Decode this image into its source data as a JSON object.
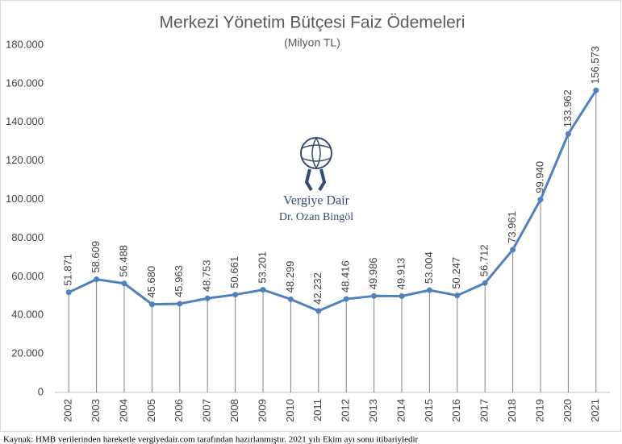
{
  "chart_data": {
    "type": "line",
    "title": "Merkezi Yönetim Bütçesi Faiz Ödemeleri",
    "subtitle": "(Milyon TL)",
    "categories": [
      "2002",
      "2003",
      "2004",
      "2005",
      "2006",
      "2007",
      "2008",
      "2009",
      "2010",
      "2011",
      "2012",
      "2013",
      "2014",
      "2015",
      "2016",
      "2017",
      "2018",
      "2019",
      "2020",
      "2021"
    ],
    "values": [
      51871,
      58609,
      56488,
      45680,
      45963,
      48753,
      50661,
      53201,
      48299,
      42232,
      48416,
      49986,
      49913,
      53004,
      50247,
      56712,
      73961,
      99940,
      133962,
      156573
    ],
    "value_labels": [
      "51.871",
      "58.609",
      "56.488",
      "45.680",
      "45.963",
      "48.753",
      "50.661",
      "53.201",
      "48.299",
      "42.232",
      "48.416",
      "49.986",
      "49.913",
      "53.004",
      "50.247",
      "56.712",
      "73.961",
      "99.940",
      "133.962",
      "156.573"
    ],
    "color": "#4f81bd",
    "ylim": [
      0,
      180000
    ],
    "yticks": [
      0,
      {
        "value": 20000,
        "label": "20.000"
      },
      {
        "value": 40000,
        "label": "40.000"
      },
      {
        "value": 60000,
        "label": "60.000"
      },
      {
        "value": 80000,
        "label": "80.000"
      },
      {
        "value": 100000,
        "label": "100.000"
      },
      {
        "value": 120000,
        "label": "120.000"
      },
      {
        "value": 140000,
        "label": "140.000"
      },
      {
        "value": 160000,
        "label": "160.000"
      },
      {
        "value": 180000,
        "label": "180.000"
      }
    ],
    "grid": false,
    "drop_lines": true,
    "annotations": [
      "Vergiye Dair",
      "Dr. Ozan Bingöl"
    ],
    "source": "Kaynak: HMB verilerinden hareketle vergiyedair.com tarafından hazırlanmıştır. 2021 yılı Ekim ayı sonu itibariyledir"
  }
}
